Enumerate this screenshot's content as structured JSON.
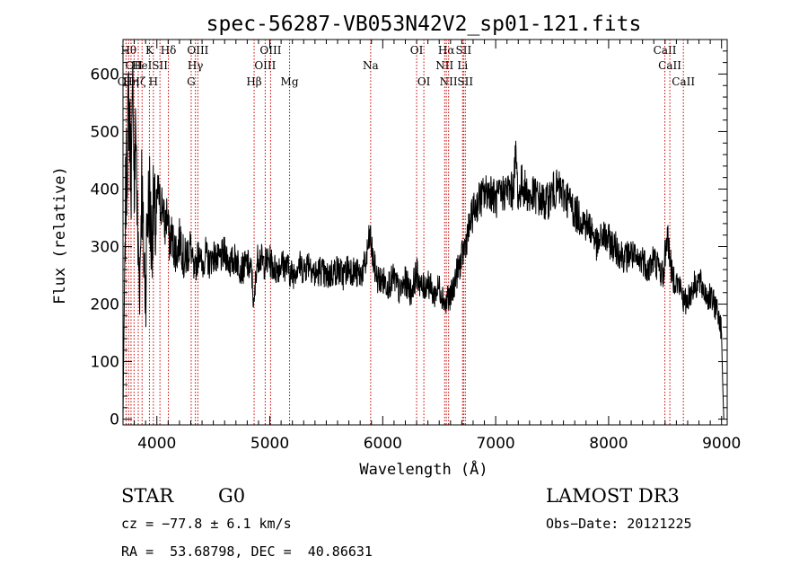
{
  "chart_data": {
    "type": "line",
    "title": "spec-56287-VB053N42V2_sp01-121.fits",
    "xlabel": "Wavelength (Å)",
    "ylabel": "Flux (relative)",
    "xlim": [
      3700,
      9050
    ],
    "ylim": [
      -10,
      660
    ],
    "xticks": [
      4000,
      5000,
      6000,
      7000,
      8000,
      9000
    ],
    "yticks": [
      0,
      100,
      200,
      300,
      400,
      500,
      600
    ],
    "line_color": "#000000",
    "marker_color": "#cc0000",
    "series": [
      {
        "x": [
          3700,
          3710,
          3720,
          3735,
          3750,
          3760,
          3775,
          3790,
          3800,
          3815,
          3830,
          3850,
          3865,
          3880,
          3900,
          3915,
          3935,
          3950,
          3970,
          3990,
          4010,
          4030,
          4050,
          4070,
          4090,
          4110,
          4130,
          4150,
          4180,
          4210,
          4240,
          4270,
          4300,
          4330,
          4360,
          4380,
          4400,
          4430,
          4460,
          4500,
          4550,
          4600,
          4650,
          4700,
          4750,
          4800,
          4840,
          4860,
          4880,
          4900,
          4950,
          5000,
          5050,
          5100,
          5150,
          5200,
          5250,
          5300,
          5350,
          5400,
          5450,
          5500,
          5550,
          5600,
          5650,
          5700,
          5750,
          5800,
          5850,
          5870,
          5890,
          5910,
          5950,
          6000,
          6050,
          6100,
          6150,
          6200,
          6250,
          6300,
          6350,
          6400,
          6450,
          6500,
          6540,
          6560,
          6575,
          6590,
          6620,
          6650,
          6700,
          6750,
          6800,
          6850,
          6900,
          6950,
          7000,
          7050,
          7100,
          7150,
          7180,
          7200,
          7230,
          7260,
          7300,
          7350,
          7400,
          7450,
          7500,
          7550,
          7600,
          7650,
          7700,
          7750,
          7800,
          7850,
          7900,
          7950,
          8000,
          8050,
          8100,
          8150,
          8200,
          8250,
          8300,
          8350,
          8400,
          8450,
          8490,
          8500,
          8520,
          8545,
          8560,
          8600,
          8630,
          8650,
          8670,
          8700,
          8750,
          8800,
          8850,
          8900,
          8950,
          8980,
          9000,
          9010,
          9020
        ],
        "y": [
          0,
          180,
          350,
          450,
          560,
          500,
          420,
          610,
          380,
          520,
          300,
          250,
          420,
          300,
          230,
          350,
          390,
          310,
          360,
          330,
          400,
          370,
          380,
          330,
          360,
          310,
          320,
          300,
          290,
          320,
          270,
          290,
          300,
          250,
          280,
          300,
          260,
          290,
          270,
          285,
          275,
          290,
          270,
          280,
          260,
          270,
          255,
          190,
          265,
          285,
          270,
          275,
          260,
          270,
          265,
          250,
          270,
          260,
          275,
          250,
          260,
          245,
          255,
          260,
          250,
          265,
          255,
          250,
          270,
          300,
          320,
          280,
          245,
          240,
          235,
          245,
          220,
          240,
          220,
          255,
          225,
          240,
          215,
          230,
          210,
          195,
          220,
          205,
          225,
          250,
          280,
          320,
          360,
          380,
          390,
          400,
          380,
          390,
          400,
          395,
          460,
          380,
          410,
          400,
          385,
          390,
          380,
          375,
          395,
          400,
          390,
          380,
          360,
          350,
          340,
          330,
          300,
          320,
          310,
          300,
          290,
          280,
          290,
          270,
          280,
          260,
          280,
          260,
          250,
          290,
          320,
          280,
          250,
          240,
          230,
          220,
          200,
          210,
          230,
          240,
          220,
          210,
          195,
          180,
          150,
          60,
          0
        ]
      }
    ],
    "lines": [
      {
        "x": 3727,
        "label": "OII",
        "row": 3
      },
      {
        "x": 3750,
        "label": "Hθ",
        "row": 1
      },
      {
        "x": 3771,
        "label": "Hη",
        "row": 3
      },
      {
        "x": 3798,
        "label": "OII",
        "row": 2
      },
      {
        "x": 3835,
        "label": "Hζ",
        "row": 3
      },
      {
        "x": 3869,
        "label": "HeI",
        "row": 2
      },
      {
        "x": 3934,
        "label": "K",
        "row": 1
      },
      {
        "x": 3969,
        "label": "H",
        "row": 3
      },
      {
        "x": 4027,
        "label": "SII",
        "row": 2
      },
      {
        "x": 4102,
        "label": "Hδ",
        "row": 1
      },
      {
        "x": 4304,
        "label": "G",
        "row": 3
      },
      {
        "x": 4341,
        "label": "Hγ",
        "row": 2
      },
      {
        "x": 4363,
        "label": "OIII",
        "row": 1
      },
      {
        "x": 4861,
        "label": "Hβ",
        "row": 3
      },
      {
        "x": 4959,
        "label": "OIII",
        "row": 2
      },
      {
        "x": 5007,
        "label": "OIII",
        "row": 1
      },
      {
        "x": 5175,
        "label": "Mg",
        "row": 3
      },
      {
        "x": 5893,
        "label": "Na",
        "row": 2
      },
      {
        "x": 6300,
        "label": "OI",
        "row": 1
      },
      {
        "x": 6364,
        "label": "OI",
        "row": 3
      },
      {
        "x": 6548,
        "label": "NII",
        "row": 2
      },
      {
        "x": 6563,
        "label": "Hα",
        "row": 1
      },
      {
        "x": 6583,
        "label": "NII",
        "row": 3
      },
      {
        "x": 6707,
        "label": "Li",
        "row": 2
      },
      {
        "x": 6716,
        "label": "SII",
        "row": 1
      },
      {
        "x": 6731,
        "label": "SII",
        "row": 3
      },
      {
        "x": 8498,
        "label": "CaII",
        "row": 1
      },
      {
        "x": 8542,
        "label": "CaII",
        "row": 2
      },
      {
        "x": 8662,
        "label": "CaII",
        "row": 3
      }
    ]
  },
  "info": {
    "class_label": "STAR",
    "subclass": "G0",
    "survey": "LAMOST DR3",
    "cz": "cz = −77.8 ± 6.1 km/s",
    "obs_date": "Obs−Date: 20121225",
    "radec": "RA =  53.68798, DEC =  40.86631"
  }
}
